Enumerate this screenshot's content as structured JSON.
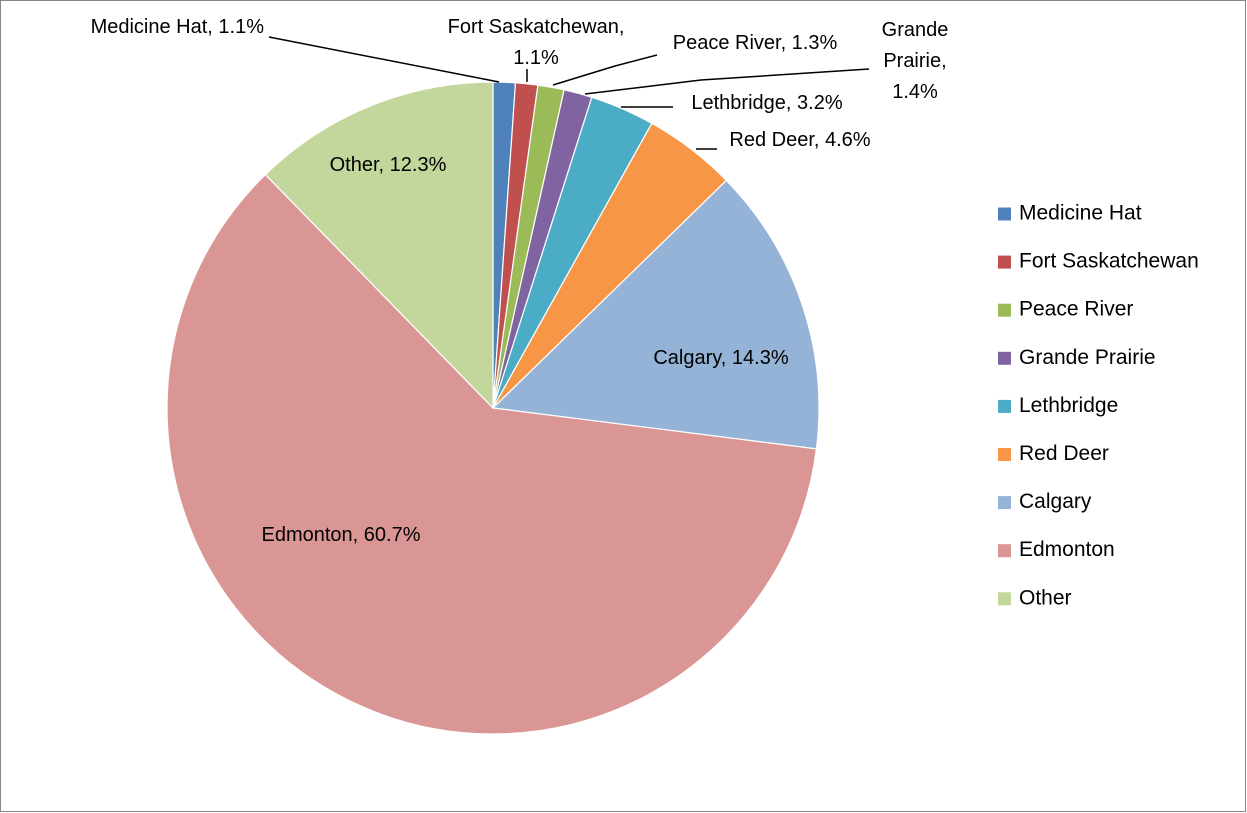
{
  "chart_data": {
    "type": "pie",
    "title": "",
    "start_angle_deg": 0,
    "direction": "clockwise",
    "slices": [
      {
        "label": "Medicine Hat",
        "value": 1.1,
        "color": "#4F81BD"
      },
      {
        "label": "Fort Saskatchewan",
        "value": 1.1,
        "color": "#C0504D"
      },
      {
        "label": "Peace River",
        "value": 1.3,
        "color": "#9BBB59"
      },
      {
        "label": "Grande Prairie",
        "value": 1.4,
        "color": "#8064A2"
      },
      {
        "label": "Lethbridge",
        "value": 3.2,
        "color": "#4BACC6"
      },
      {
        "label": "Red Deer",
        "value": 4.6,
        "color": "#F79646"
      },
      {
        "label": "Calgary",
        "value": 14.3,
        "color": "#95B3D7"
      },
      {
        "label": "Edmonton",
        "value": 60.7,
        "color": "#D99694"
      },
      {
        "label": "Other",
        "value": 12.3,
        "color": "#C3D69B"
      }
    ],
    "data_labels": [
      {
        "lines": [
          "Medicine Hat, 1.1%"
        ]
      },
      {
        "lines": [
          "Fort Saskatchewan,",
          "1.1%"
        ]
      },
      {
        "lines": [
          "Peace River, 1.3%"
        ]
      },
      {
        "lines": [
          "Grande",
          "Prairie,",
          "1.4%"
        ]
      },
      {
        "lines": [
          "Lethbridge, 3.2%"
        ]
      },
      {
        "lines": [
          "Red Deer, 4.6%"
        ]
      },
      {
        "lines": [
          "Calgary, 14.3%"
        ]
      },
      {
        "lines": [
          "Edmonton, 60.7%"
        ]
      },
      {
        "lines": [
          "Other, 12.3%"
        ]
      }
    ],
    "legend": {
      "position": "right",
      "entries": [
        "Medicine Hat",
        "Fort Saskatchewan",
        "Peace River",
        "Grande Prairie",
        "Lethbridge",
        "Red Deer",
        "Calgary",
        "Edmonton",
        "Other"
      ]
    }
  }
}
